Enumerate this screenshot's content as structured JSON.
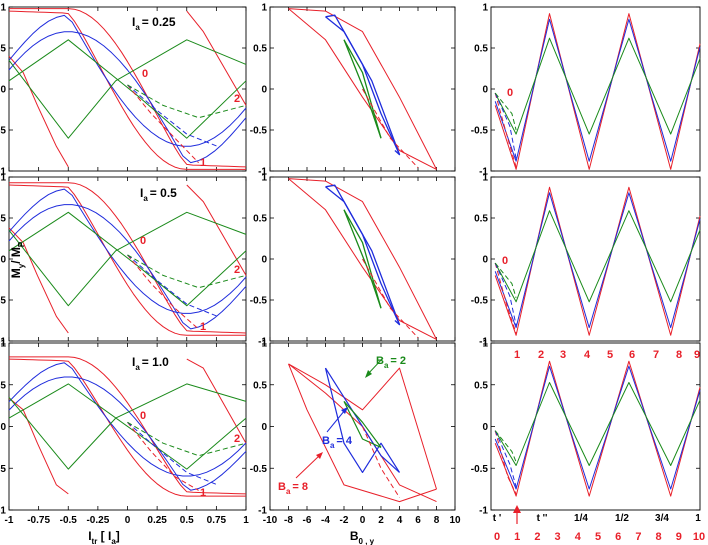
{
  "colors": {
    "red": "#e8202a",
    "blue": "#1f2cdc",
    "green": "#1a8a1a",
    "black": "#000000"
  },
  "figure": {
    "ylabel": {
      "main": "M",
      "sub1": "y",
      "slash": "/ M",
      "sub2": "P"
    },
    "xlabel_left": {
      "main": "I",
      "sub": "tr",
      "rest": " [ I",
      "sub2": "a",
      "close": "]"
    },
    "xlabel_mid": {
      "main": "B",
      "sub": "0 , y"
    },
    "row_labels": [
      {
        "main": "I",
        "sub": "a",
        "rest": "= 0.25"
      },
      {
        "main": "I",
        "sub": "a",
        "rest": "= 0.5"
      },
      {
        "main": "I",
        "sub": "a",
        "rest": "= 1.0"
      }
    ],
    "left_marks": {
      "row0": [
        "0",
        "1",
        "2"
      ],
      "row1": [
        "0",
        "1",
        "2"
      ],
      "row2": [
        "0",
        "1",
        "2"
      ]
    },
    "right_marks_top": [
      "0",
      "0"
    ],
    "ba_labels": [
      {
        "main": "B",
        "sub": "a",
        "rest": "= 2",
        "color": "#1a8a1a"
      },
      {
        "main": "B",
        "sub": "a",
        "rest": "= 4",
        "color": "#1f2cdc"
      },
      {
        "main": "B",
        "sub": "a",
        "rest": "= 8",
        "color": "#e8202a"
      }
    ],
    "right_bottom_top_ticks": [
      "1",
      "2",
      "3",
      "4",
      "5",
      "6",
      "7",
      "8",
      "9"
    ],
    "right_bottom_xticks": [
      "t '",
      "t ''",
      "1/4",
      "1/2",
      "3/4",
      "1"
    ],
    "right_bottom_red_ticks": [
      "0",
      "1",
      "2",
      "3",
      "4",
      "5",
      "6",
      "7",
      "8",
      "9",
      "10"
    ]
  },
  "chart_data": [
    {
      "type": "line",
      "panel": "left",
      "xlim": [
        -1,
        1
      ],
      "ylim": [
        -1,
        1
      ],
      "xticks": [
        "-1",
        "-0.75",
        "-0.5",
        "-0.25",
        "0",
        "0.25",
        "0.5",
        "0.75",
        "1"
      ],
      "yticks": [
        "-1",
        "-0.5",
        "0",
        "0.5",
        "1"
      ],
      "series": [
        {
          "name": "B_a = 8",
          "color": "#e8202a"
        },
        {
          "name": "B_a = 4",
          "color": "#1f2cdc"
        },
        {
          "name": "B_a = 2",
          "color": "#1a8a1a"
        }
      ]
    },
    {
      "type": "line",
      "panel": "middle",
      "xlim": [
        -10,
        10
      ],
      "ylim": [
        -1,
        1
      ],
      "xticks": [
        "-10",
        "-8",
        "-6",
        "-4",
        "-2",
        "0",
        "2",
        "4",
        "6",
        "8",
        "10"
      ],
      "series": [
        {
          "name": "B_a = 8",
          "color": "#e8202a"
        },
        {
          "name": "B_a = 4",
          "color": "#1f2cdc"
        },
        {
          "name": "B_a = 2",
          "color": "#1a8a1a"
        }
      ]
    },
    {
      "type": "line",
      "panel": "right",
      "ylim": [
        -1,
        1
      ],
      "series": [
        {
          "name": "B_a = 8",
          "color": "#e8202a"
        },
        {
          "name": "B_a = 4",
          "color": "#1f2cdc"
        },
        {
          "name": "B_a = 2",
          "color": "#1a8a1a"
        }
      ]
    }
  ]
}
